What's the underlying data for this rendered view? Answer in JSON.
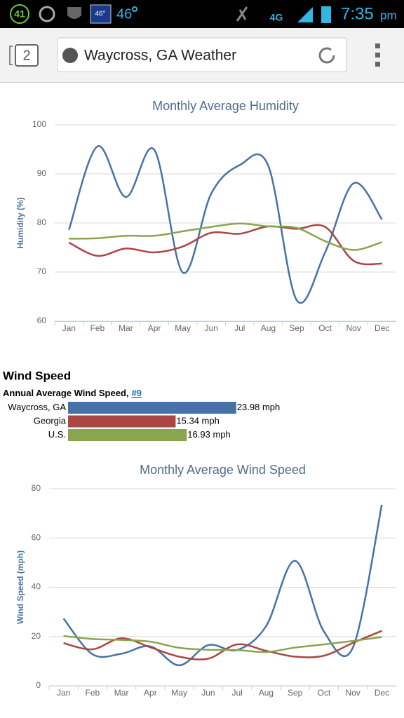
{
  "status_bar": {
    "badge": "41",
    "temp_icon": "46°",
    "temp": "46",
    "network": "4G",
    "time": "7:35",
    "ampm": "pm"
  },
  "browser": {
    "tabs": "2",
    "url_title": "Waycross, GA Weather"
  },
  "chart_data": [
    {
      "type": "line",
      "title": "Monthly Average Humidity",
      "y_label": "Humidity (%)",
      "categories": [
        "Jan",
        "Feb",
        "Mar",
        "Apr",
        "May",
        "Jun",
        "Jul",
        "Aug",
        "Sep",
        "Oct",
        "Nov",
        "Dec"
      ],
      "series": [
        {
          "color": "#4572a7",
          "values": [
            78.6,
            95.6,
            85.3,
            94.9,
            69.9,
            86,
            91.8,
            91.7,
            64.3,
            74,
            88.1,
            80.7
          ]
        },
        {
          "color": "#aa4643",
          "values": [
            76,
            73.3,
            74.8,
            74,
            75.2,
            78,
            77.8,
            79.3,
            78.8,
            79.2,
            72.3,
            71.7
          ]
        },
        {
          "color": "#89a54e",
          "values": [
            76.8,
            76.9,
            77.4,
            77.4,
            78.3,
            79.2,
            79.9,
            79.3,
            79,
            76.3,
            74.5,
            76.1
          ]
        }
      ],
      "ylim": [
        60,
        100
      ],
      "yticks": [
        60,
        70,
        80,
        90,
        100
      ],
      "grid": true
    },
    {
      "type": "hbar",
      "title": "Wind Speed",
      "subtitle": "Annual Average Wind Speed,",
      "rank": "#9",
      "categories": [
        "Waycross, GA",
        "Georgia",
        "U.S."
      ],
      "values": [
        23.98,
        15.34,
        16.93
      ],
      "value_labels": [
        "23.98 mph",
        "15.34 mph",
        "16.93 mph"
      ],
      "colors": [
        "#4572a7",
        "#aa4643",
        "#89a54e"
      ]
    },
    {
      "type": "line",
      "title": "Monthly Average Wind Speed",
      "y_label": "Wind Speed (mph)",
      "categories": [
        "Jan",
        "Feb",
        "Mar",
        "Apr",
        "May",
        "Jun",
        "Jul",
        "Aug",
        "Sep",
        "Oct",
        "Nov",
        "Dec"
      ],
      "series": [
        {
          "color": "#4572a7",
          "values": [
            27.3,
            12.8,
            13,
            16,
            8.3,
            16.5,
            14.5,
            24.2,
            50.7,
            22,
            15.5,
            73.5
          ]
        },
        {
          "color": "#aa4643",
          "values": [
            17.3,
            14.8,
            19.3,
            15.6,
            11.8,
            11,
            16.8,
            14.2,
            11.8,
            12.2,
            17.4,
            22.3
          ]
        },
        {
          "color": "#89a54e",
          "values": [
            20.2,
            19,
            18.6,
            17.9,
            15.4,
            14.6,
            14.5,
            13.7,
            15.5,
            16.8,
            18.2,
            19.8
          ]
        }
      ],
      "ylim": [
        0,
        80
      ],
      "yticks": [
        0,
        20,
        40,
        60,
        80
      ],
      "grid": true
    }
  ]
}
